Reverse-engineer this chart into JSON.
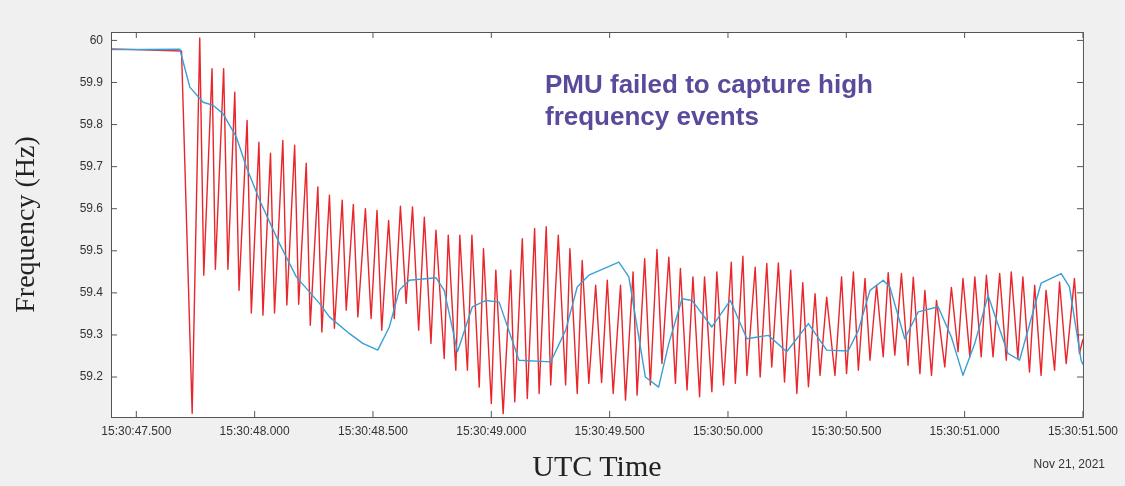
{
  "chart_data": {
    "type": "line",
    "xlabel": "UTC Time",
    "ylabel": "Frequency (Hz)",
    "annotations": [
      "PMU failed to capture high frequency events",
      "Nov 21, 2021"
    ],
    "xlim": [
      "2021-11-21T15:30:47.393",
      "2021-11-21T15:30:51.500"
    ],
    "xticks": [
      {
        "value": "2021-11-21T15:30:47.500",
        "label": "15:30:47.500"
      },
      {
        "value": "2021-11-21T15:30:48.000",
        "label": "15:30:48.000"
      },
      {
        "value": "2021-11-21T15:30:48.500",
        "label": "15:30:48.500"
      },
      {
        "value": "2021-11-21T15:30:49.000",
        "label": "15:30:49.000"
      },
      {
        "value": "2021-11-21T15:30:49.500",
        "label": "15:30:49.500"
      },
      {
        "value": "2021-11-21T15:30:50.000",
        "label": "15:30:50.000"
      },
      {
        "value": "2021-11-21T15:30:50.500",
        "label": "15:30:50.500"
      },
      {
        "value": "2021-11-21T15:30:51.000",
        "label": "15:30:51.000"
      },
      {
        "value": "2021-11-21T15:30:51.500",
        "label": "15:30:51.500"
      }
    ],
    "ylim": [
      59.105,
      60.02
    ],
    "yticks": [
      59.2,
      59.3,
      59.4,
      59.5,
      59.6,
      59.7,
      59.8,
      59.9,
      60
    ],
    "series": [
      {
        "color": "#e8262b",
        "x": [
          "2021-11-21T15:30:47.393",
          "2021-11-21T15:30:47.691",
          "2021-11-21T15:30:47.736",
          "2021-11-21T15:30:47.768",
          "2021-11-21T15:30:47.785",
          "2021-11-21T15:30:47.820",
          "2021-11-21T15:30:47.834",
          "2021-11-21T15:30:47.869",
          "2021-11-21T15:30:47.887",
          "2021-11-21T15:30:47.916",
          "2021-11-21T15:30:47.934",
          "2021-11-21T15:30:47.968",
          "2021-11-21T15:30:47.986",
          "2021-11-21T15:30:48.018",
          "2021-11-21T15:30:48.035",
          "2021-11-21T15:30:48.067",
          "2021-11-21T15:30:48.084",
          "2021-11-21T15:30:48.119",
          "2021-11-21T15:30:48.136",
          "2021-11-21T15:30:48.169",
          "2021-11-21T15:30:48.186",
          "2021-11-21T15:30:48.218",
          "2021-11-21T15:30:48.235",
          "2021-11-21T15:30:48.267",
          "2021-11-21T15:30:48.284",
          "2021-11-21T15:30:48.316",
          "2021-11-21T15:30:48.337",
          "2021-11-21T15:30:48.370",
          "2021-11-21T15:30:48.387",
          "2021-11-21T15:30:48.417",
          "2021-11-21T15:30:48.436",
          "2021-11-21T15:30:48.468",
          "2021-11-21T15:30:48.492",
          "2021-11-21T15:30:48.517",
          "2021-11-21T15:30:48.537",
          "2021-11-21T15:30:48.566",
          "2021-11-21T15:30:48.590",
          "2021-11-21T15:30:48.616",
          "2021-11-21T15:30:48.640",
          "2021-11-21T15:30:48.667",
          "2021-11-21T15:30:48.693",
          "2021-11-21T15:30:48.717",
          "2021-11-21T15:30:48.745",
          "2021-11-21T15:30:48.766",
          "2021-11-21T15:30:48.801",
          "2021-11-21T15:30:48.818",
          "2021-11-21T15:30:48.850",
          "2021-11-21T15:30:48.867",
          "2021-11-21T15:30:48.899",
          "2021-11-21T15:30:48.918",
          "2021-11-21T15:30:48.949",
          "2021-11-21T15:30:48.967",
          "2021-11-21T15:30:49.000",
          "2021-11-21T15:30:49.019",
          "2021-11-21T15:30:49.050",
          "2021-11-21T15:30:49.082",
          "2021-11-21T15:30:49.099",
          "2021-11-21T15:30:49.131",
          "2021-11-21T15:30:49.152",
          "2021-11-21T15:30:49.183",
          "2021-11-21T15:30:49.202",
          "2021-11-21T15:30:49.232",
          "2021-11-21T15:30:49.251",
          "2021-11-21T15:30:49.283",
          "2021-11-21T15:30:49.314",
          "2021-11-21T15:30:49.332",
          "2021-11-21T15:30:49.363",
          "2021-11-21T15:30:49.384",
          "2021-11-21T15:30:49.412",
          "2021-11-21T15:30:49.441",
          "2021-11-21T15:30:49.466",
          "2021-11-21T15:30:49.490",
          "2021-11-21T15:30:49.515",
          "2021-11-21T15:30:49.546",
          "2021-11-21T15:30:49.567",
          "2021-11-21T15:30:49.599",
          "2021-11-21T15:30:49.616",
          "2021-11-21T15:30:49.648",
          "2021-11-21T15:30:49.672",
          "2021-11-21T15:30:49.700",
          "2021-11-21T15:30:49.721",
          "2021-11-21T15:30:49.750",
          "2021-11-21T15:30:49.778",
          "2021-11-21T15:30:49.799",
          "2021-11-21T15:30:49.827",
          "2021-11-21T15:30:49.852",
          "2021-11-21T15:30:49.880",
          "2021-11-21T15:30:49.901",
          "2021-11-21T15:30:49.932",
          "2021-11-21T15:30:49.953",
          "2021-11-21T15:30:49.981",
          "2021-11-21T15:30:50.014",
          "2021-11-21T15:30:50.031",
          "2021-11-21T15:30:50.063",
          "2021-11-21T15:30:50.080",
          "2021-11-21T15:30:50.115",
          "2021-11-21T15:30:50.136",
          "2021-11-21T15:30:50.164",
          "2021-11-21T15:30:50.185",
          "2021-11-21T15:30:50.213",
          "2021-11-21T15:30:50.239",
          "2021-11-21T15:30:50.265",
          "2021-11-21T15:30:50.291",
          "2021-11-21T15:30:50.316",
          "2021-11-21T15:30:50.340",
          "2021-11-21T15:30:50.368",
          "2021-11-21T15:30:50.389",
          "2021-11-21T15:30:50.417",
          "2021-11-21T15:30:50.452",
          "2021-11-21T15:30:50.480",
          "2021-11-21T15:30:50.501",
          "2021-11-21T15:30:50.530",
          "2021-11-21T15:30:50.551",
          "2021-11-21T15:30:50.579",
          "2021-11-21T15:30:50.600",
          "2021-11-21T15:30:50.628",
          "2021-11-21T15:30:50.656",
          "2021-11-21T15:30:50.677",
          "2021-11-21T15:30:50.705",
          "2021-11-21T15:30:50.733",
          "2021-11-21T15:30:50.761",
          "2021-11-21T15:30:50.783",
          "2021-11-21T15:30:50.811",
          "2021-11-21T15:30:50.832",
          "2021-11-21T15:30:50.860",
          "2021-11-21T15:30:50.881",
          "2021-11-21T15:30:50.916",
          "2021-11-21T15:30:50.944",
          "2021-11-21T15:30:50.972",
          "2021-11-21T15:30:50.993",
          "2021-11-21T15:30:51.022",
          "2021-11-21T15:30:51.043",
          "2021-11-21T15:30:51.070",
          "2021-11-21T15:30:51.092",
          "2021-11-21T15:30:51.120",
          "2021-11-21T15:30:51.148",
          "2021-11-21T15:30:51.176",
          "2021-11-21T15:30:51.197",
          "2021-11-21T15:30:51.225",
          "2021-11-21T15:30:51.246",
          "2021-11-21T15:30:51.274",
          "2021-11-21T15:30:51.296",
          "2021-11-21T15:30:51.323",
          "2021-11-21T15:30:51.344",
          "2021-11-21T15:30:51.380",
          "2021-11-21T15:30:51.401",
          "2021-11-21T15:30:51.429",
          "2021-11-21T15:30:51.464",
          "2021-11-21T15:30:51.485",
          "2021-11-21T15:30:51.500"
        ],
        "values": [
          59.98,
          59.975,
          59.114,
          60.006,
          59.442,
          59.933,
          59.456,
          59.933,
          59.456,
          59.877,
          59.406,
          59.81,
          59.352,
          59.758,
          59.347,
          59.732,
          59.352,
          59.762,
          59.371,
          59.751,
          59.373,
          59.708,
          59.323,
          59.652,
          59.307,
          59.632,
          59.316,
          59.62,
          59.359,
          59.61,
          59.343,
          59.6,
          59.339,
          59.596,
          59.311,
          59.572,
          59.339,
          59.606,
          59.375,
          59.604,
          59.311,
          59.58,
          59.28,
          59.549,
          59.244,
          59.537,
          59.216,
          59.537,
          59.216,
          59.537,
          59.176,
          59.505,
          59.137,
          59.454,
          59.113,
          59.454,
          59.141,
          59.529,
          59.149,
          59.553,
          59.161,
          59.557,
          59.181,
          59.537,
          59.181,
          59.505,
          59.161,
          59.477,
          59.185,
          59.418,
          59.187,
          59.43,
          59.161,
          59.418,
          59.145,
          59.45,
          59.157,
          59.481,
          59.181,
          59.503,
          59.232,
          59.485,
          59.185,
          59.458,
          59.169,
          59.438,
          59.153,
          59.438,
          59.165,
          59.45,
          59.181,
          59.473,
          59.185,
          59.487,
          59.204,
          59.461,
          59.2,
          59.47,
          59.224,
          59.471,
          59.188,
          59.454,
          59.161,
          59.424,
          59.177,
          59.398,
          59.204,
          59.39,
          59.204,
          59.438,
          59.208,
          59.45,
          59.216,
          59.434,
          59.24,
          59.418,
          59.248,
          59.448,
          59.252,
          59.446,
          59.228,
          59.437,
          59.208,
          59.406,
          59.204,
          59.382,
          59.224,
          59.413,
          59.26,
          59.434,
          59.248,
          59.438,
          59.248,
          59.442,
          59.248,
          59.446,
          59.24,
          59.45,
          59.244,
          59.438,
          59.212,
          59.418,
          59.204,
          59.406,
          59.216,
          59.426,
          59.232,
          59.434,
          59.256,
          59.29
        ]
      },
      {
        "color": "#3a9fd6",
        "x": [
          "2021-11-21T15:30:47.393",
          "2021-11-21T15:30:47.684",
          "2021-11-21T15:30:47.726",
          "2021-11-21T15:30:47.782",
          "2021-11-21T15:30:47.824",
          "2021-11-21T15:30:47.866",
          "2021-11-21T15:30:47.923",
          "2021-11-21T15:30:47.965",
          "2021-11-21T15:30:48.021",
          "2021-11-21T15:30:48.105",
          "2021-11-21T15:30:48.176",
          "2021-11-21T15:30:48.274",
          "2021-11-21T15:30:48.316",
          "2021-11-21T15:30:48.401",
          "2021-11-21T15:30:48.457",
          "2021-11-21T15:30:48.520",
          "2021-11-21T15:30:48.569",
          "2021-11-21T15:30:48.611",
          "2021-11-21T15:30:48.653",
          "2021-11-21T15:30:48.766",
          "2021-11-21T15:30:48.801",
          "2021-11-21T15:30:48.857",
          "2021-11-21T15:30:48.920",
          "2021-11-21T15:30:48.977",
          "2021-11-21T15:30:49.033",
          "2021-11-21T15:30:49.117",
          "2021-11-21T15:30:49.251",
          "2021-11-21T15:30:49.314",
          "2021-11-21T15:30:49.363",
          "2021-11-21T15:30:49.412",
          "2021-11-21T15:30:49.539",
          "2021-11-21T15:30:49.581",
          "2021-11-21T15:30:49.651",
          "2021-11-21T15:30:49.707",
          "2021-11-21T15:30:49.750",
          "2021-11-21T15:30:49.806",
          "2021-11-21T15:30:49.848",
          "2021-11-21T15:30:49.932",
          "2021-11-21T15:30:50.010",
          "2021-11-21T15:30:50.080",
          "2021-11-21T15:30:50.171",
          "2021-11-21T15:30:50.248",
          "2021-11-21T15:30:50.340",
          "2021-11-21T15:30:50.417",
          "2021-11-21T15:30:50.508",
          "2021-11-21T15:30:50.551",
          "2021-11-21T15:30:50.600",
          "2021-11-21T15:30:50.656",
          "2021-11-21T15:30:50.684",
          "2021-11-21T15:30:50.747",
          "2021-11-21T15:30:50.804",
          "2021-11-21T15:30:50.888",
          "2021-11-21T15:30:50.944",
          "2021-11-21T15:30:50.993",
          "2021-11-21T15:30:51.043",
          "2021-11-21T15:30:51.099",
          "2021-11-21T15:30:51.183",
          "2021-11-21T15:30:51.232",
          "2021-11-21T15:30:51.323",
          "2021-11-21T15:30:51.408",
          "2021-11-21T15:30:51.443",
          "2021-11-21T15:30:51.492",
          "2021-11-21T15:30:51.500"
        ],
        "values": [
          59.978,
          59.979,
          59.889,
          59.853,
          59.846,
          59.826,
          59.77,
          59.699,
          59.62,
          59.517,
          59.438,
          59.375,
          59.343,
          59.303,
          59.28,
          59.264,
          59.319,
          59.406,
          59.43,
          59.436,
          59.406,
          59.26,
          59.367,
          59.382,
          59.378,
          59.24,
          59.236,
          59.311,
          59.414,
          59.442,
          59.473,
          59.438,
          59.2,
          59.176,
          59.28,
          59.386,
          59.382,
          59.319,
          59.382,
          59.291,
          59.299,
          59.26,
          59.327,
          59.264,
          59.262,
          59.311,
          59.406,
          59.43,
          59.414,
          59.291,
          59.355,
          59.367,
          59.295,
          59.204,
          59.28,
          59.394,
          59.256,
          59.24,
          59.423,
          59.446,
          59.414,
          59.24,
          59.23
        ]
      }
    ]
  }
}
